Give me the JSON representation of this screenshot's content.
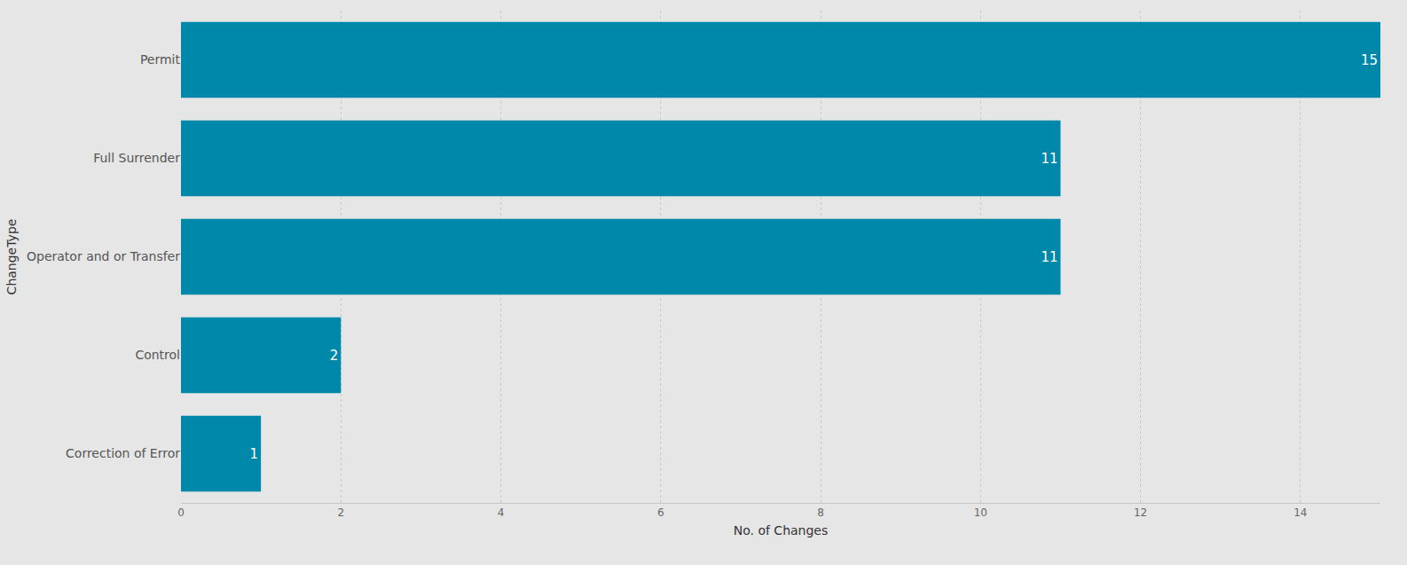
{
  "chart_data": {
    "type": "bar",
    "orientation": "horizontal",
    "xlabel": "No. of Changes",
    "ylabel": "ChangeType",
    "categories": [
      "Permit",
      "Full Surrender",
      "Operator and or Transfer",
      "Control",
      "Correction of Error"
    ],
    "values": [
      15,
      11,
      11,
      2,
      1
    ],
    "color": "#0088ab",
    "xlim": [
      0,
      15
    ],
    "xticks": [
      0,
      2,
      4,
      6,
      8,
      10,
      12,
      14
    ],
    "grid": true,
    "data_labels": true
  }
}
